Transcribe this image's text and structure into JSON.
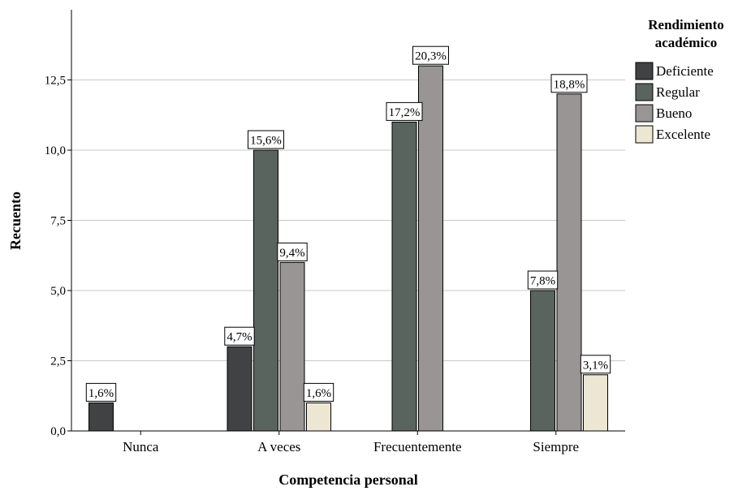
{
  "chart_data": {
    "type": "bar",
    "xlabel": "Competencia personal",
    "ylabel": "Recuento",
    "ylim": [
      0,
      15
    ],
    "yticks": [
      "0,0",
      "2,5",
      "5,0",
      "7,5",
      "10,0",
      "12,5"
    ],
    "ytick_values": [
      0,
      2.5,
      5,
      7.5,
      10,
      12.5
    ],
    "grid": true,
    "legend_position": "top-right",
    "legend_title": [
      "Rendimiento",
      "académico"
    ],
    "categories": [
      "Nunca",
      "A veces",
      "Frecuentemente",
      "Siempre"
    ],
    "series": [
      {
        "name": "Deficiente",
        "color": "#404244",
        "values": [
          1,
          3,
          0,
          0
        ],
        "labels": [
          "1,6%",
          "4,7%",
          "",
          ""
        ]
      },
      {
        "name": "Regular",
        "color": "#5a645e",
        "values": [
          0,
          10,
          11,
          5
        ],
        "labels": [
          "",
          "15,6%",
          "17,2%",
          "7,8%"
        ]
      },
      {
        "name": "Bueno",
        "color": "#999595",
        "values": [
          0,
          6,
          13,
          12
        ],
        "labels": [
          "",
          "9,4%",
          "20,3%",
          "18,8%"
        ]
      },
      {
        "name": "Excelente",
        "color": "#ece6d2",
        "values": [
          0,
          1,
          0,
          2
        ],
        "labels": [
          "",
          "1,6%",
          "",
          "3,1%"
        ]
      }
    ]
  }
}
